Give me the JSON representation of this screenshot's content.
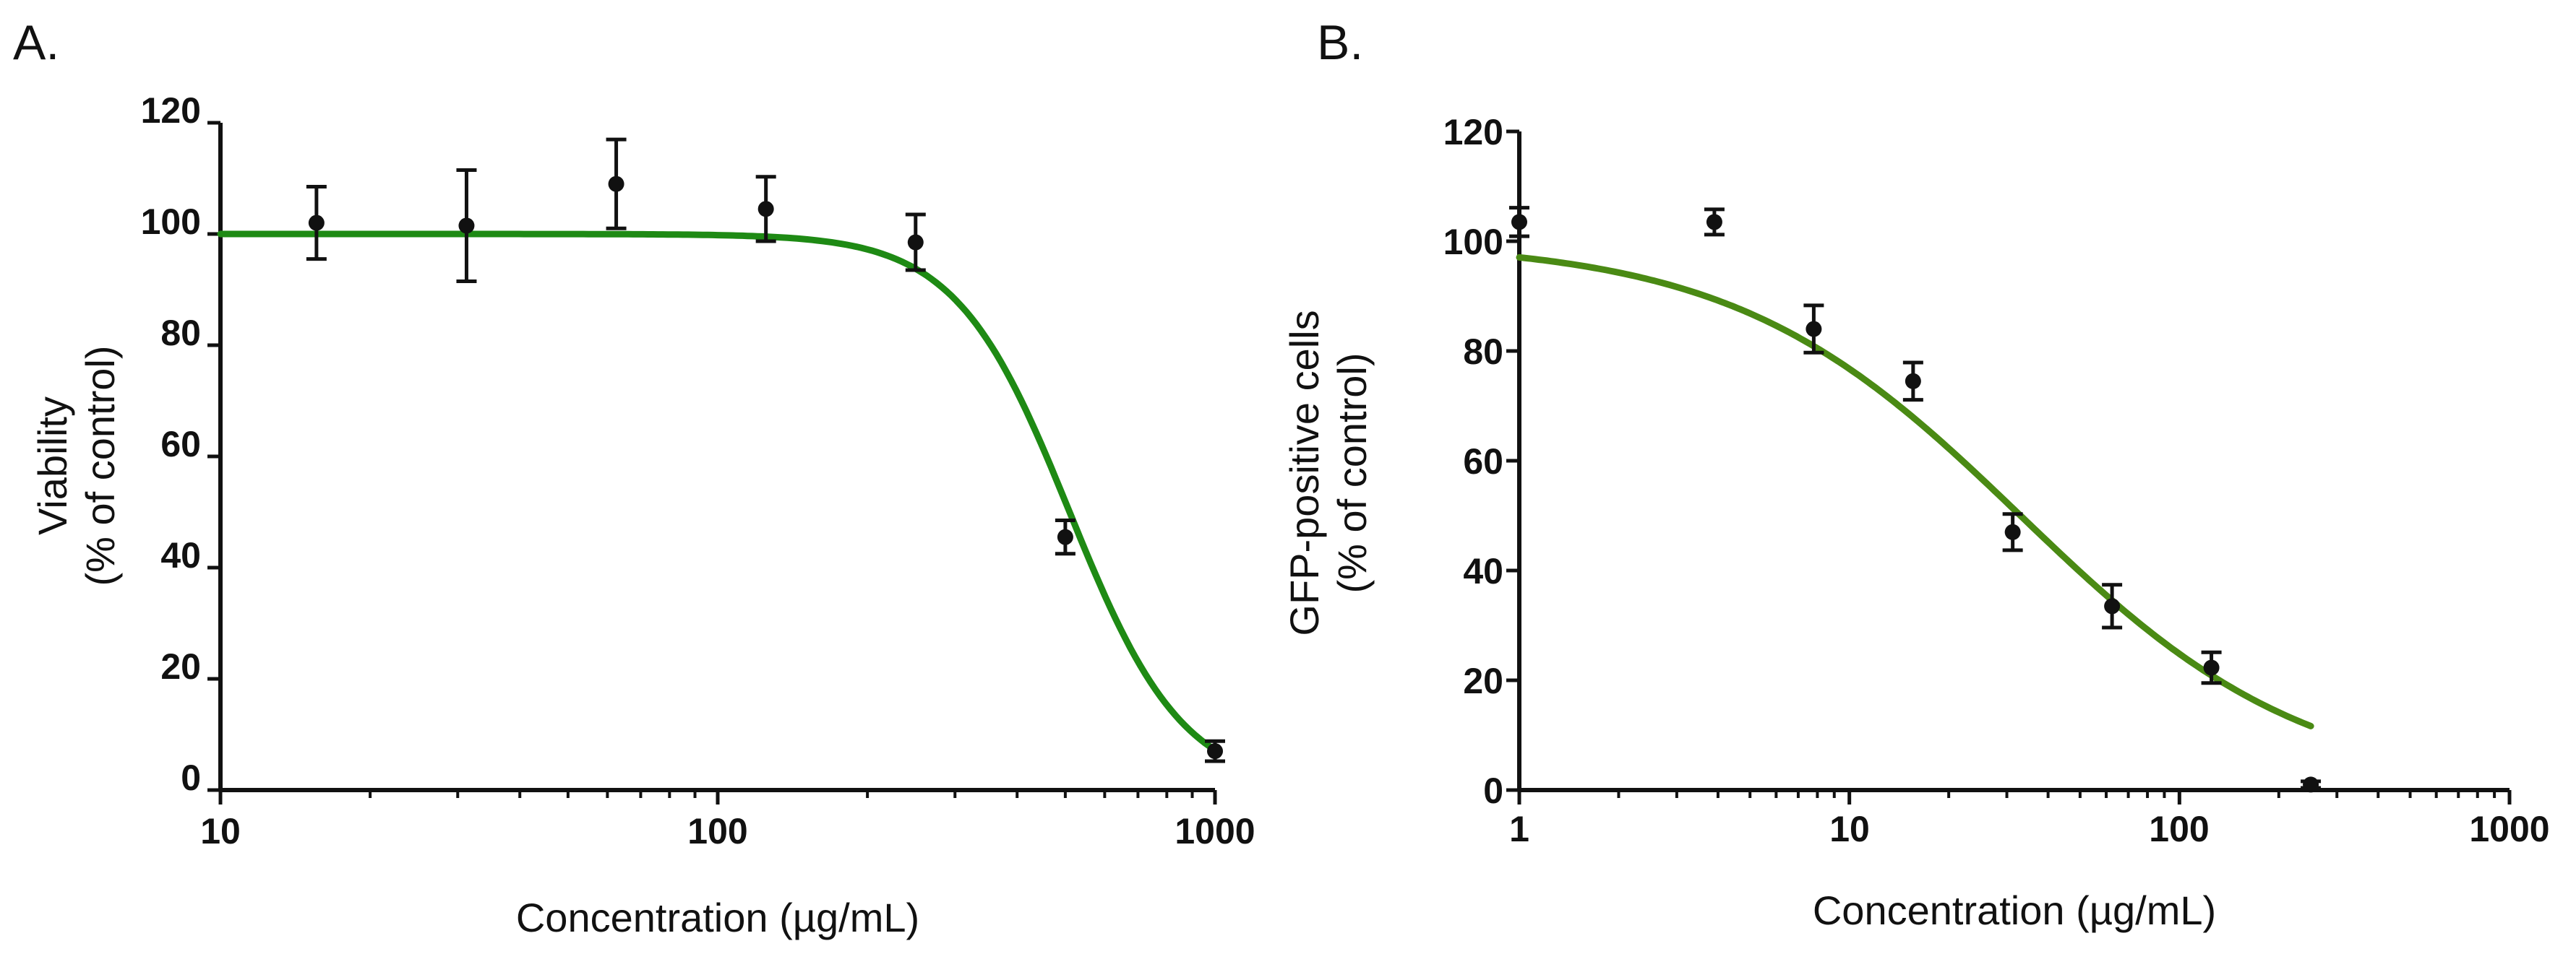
{
  "chart_data": [
    {
      "panel": "A.",
      "type": "scatter",
      "x_scale": "log",
      "xlim": [
        10,
        1000
      ],
      "ylim": [
        0,
        120
      ],
      "x_ticks": [
        10,
        100,
        1000
      ],
      "x_tick_labels": [
        "10",
        "100",
        "1000"
      ],
      "y_ticks": [
        0,
        20,
        40,
        60,
        80,
        100,
        120
      ],
      "y_tick_labels": [
        "0",
        "20",
        "40",
        "60",
        "80",
        "100",
        "120"
      ],
      "xlabel": "Concentration (µg/mL)",
      "ylabel_lines": [
        "Viability",
        "(% of control)"
      ],
      "curve_color": "#1e8a14",
      "fit": {
        "top": 100,
        "bottom": 0,
        "ic50": 510,
        "hill": 3.8
      },
      "points": [
        {
          "x": 15.6,
          "y": 102,
          "err": 6.5
        },
        {
          "x": 31.25,
          "y": 101.5,
          "err": 10
        },
        {
          "x": 62.5,
          "y": 109,
          "err": 8
        },
        {
          "x": 125,
          "y": 104.5,
          "err": 5.8
        },
        {
          "x": 250,
          "y": 98.5,
          "err": 5
        },
        {
          "x": 500,
          "y": 45.5,
          "err": 3
        },
        {
          "x": 1000,
          "y": 7,
          "err": 1.8
        }
      ]
    },
    {
      "panel": "B.",
      "type": "scatter",
      "x_scale": "log",
      "xlim": [
        1,
        1000
      ],
      "ylim": [
        0,
        120
      ],
      "x_ticks": [
        1,
        10,
        100,
        1000
      ],
      "x_tick_labels": [
        "1",
        "10",
        "100",
        "1000"
      ],
      "y_ticks": [
        0,
        20,
        40,
        60,
        80,
        100,
        120
      ],
      "y_tick_labels": [
        "0",
        "20",
        "40",
        "60",
        "80",
        "100",
        "120"
      ],
      "xlabel": "Concentration (µg/mL)",
      "ylabel_lines": [
        "GFP-positive cells",
        "(% of control)"
      ],
      "curve_color": "#4a8a14",
      "fit": {
        "top": 100,
        "bottom": 0,
        "ic50": 33,
        "hill": 1.0
      },
      "fit_x_range": [
        1,
        250
      ],
      "points": [
        {
          "x": 1,
          "y": 103.5,
          "err": 2.6
        },
        {
          "x": 3.9,
          "y": 103.5,
          "err": 2.3
        },
        {
          "x": 7.8,
          "y": 84,
          "err": 4.3
        },
        {
          "x": 15.6,
          "y": 74.5,
          "err": 3.4
        },
        {
          "x": 31.25,
          "y": 47,
          "err": 3.3
        },
        {
          "x": 62.5,
          "y": 33.5,
          "err": 3.9
        },
        {
          "x": 125,
          "y": 22.3,
          "err": 2.8
        },
        {
          "x": 250,
          "y": 1,
          "err": 0.6
        }
      ]
    }
  ]
}
